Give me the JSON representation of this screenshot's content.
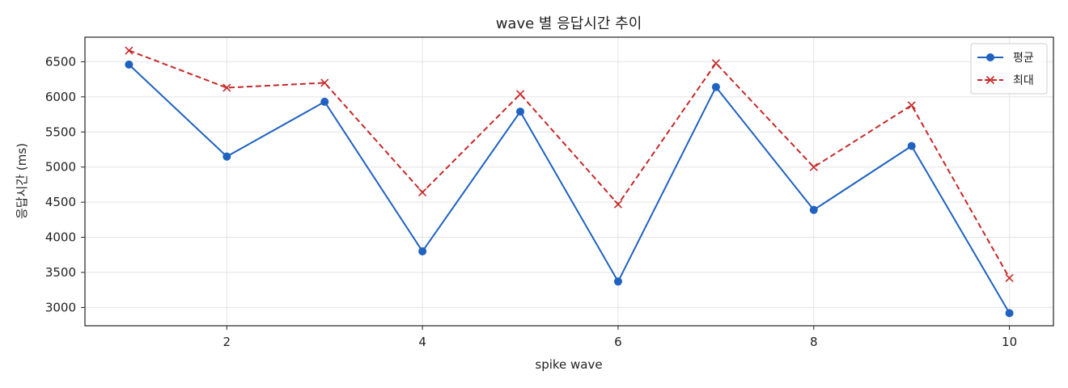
{
  "chart_data": {
    "type": "line",
    "title": "wave 별 응답시간 추이",
    "xlabel": "spike wave",
    "ylabel": "응답시간 (ms)",
    "x": [
      1,
      2,
      3,
      4,
      5,
      6,
      7,
      8,
      9,
      10
    ],
    "xlim": [
      0.55,
      10.45
    ],
    "ylim": [
      2740,
      6850
    ],
    "xticks": [
      2,
      4,
      6,
      8,
      10
    ],
    "yticks": [
      3000,
      3500,
      4000,
      4500,
      5000,
      5500,
      6000,
      6500
    ],
    "grid": true,
    "legend_position": "top-right",
    "series": [
      {
        "name": "평균",
        "color": "#1f62c0",
        "line_style": "solid",
        "marker": "circle",
        "values": [
          6460,
          5150,
          5930,
          3800,
          5790,
          3370,
          6140,
          4390,
          5300,
          2920
        ]
      },
      {
        "name": "최대",
        "color": "#c62828",
        "line_style": "dashed",
        "marker": "x",
        "values": [
          6660,
          6130,
          6200,
          4640,
          6040,
          4470,
          6480,
          5000,
          5880,
          3420
        ]
      }
    ]
  }
}
